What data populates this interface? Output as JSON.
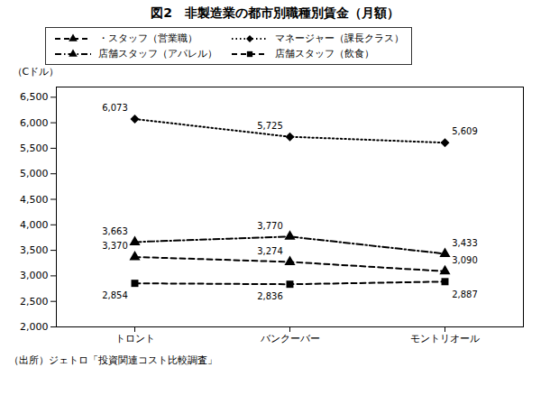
{
  "chart_data": {
    "type": "line",
    "title": "図2　非製造業の都市別職種別賃金（月額）",
    "ylabel": "（Cドル）",
    "source": "（出所）ジェトロ「投資関連コスト比較調査」",
    "categories": [
      "トロント",
      "バンクーバー",
      "モントリオール"
    ],
    "series": [
      {
        "name": "・スタッフ（営業職）",
        "color": "#000000",
        "marker": "triangle",
        "line_style": "dashed",
        "values": [
          3370,
          3274,
          3090
        ],
        "value_labels": [
          "3,370",
          "3,274",
          "3,090"
        ]
      },
      {
        "name": "マネージャー（課長クラス）",
        "color": "#000000",
        "marker": "diamond",
        "line_style": "dotted",
        "values": [
          6073,
          5725,
          5609
        ],
        "value_labels": [
          "6,073",
          "5,725",
          "5,609"
        ]
      },
      {
        "name": "店舗スタッフ（アパレル）",
        "color": "#000000",
        "marker": "triangle",
        "line_style": "dashdot",
        "values": [
          3663,
          3770,
          3433
        ],
        "value_labels": [
          "3,663",
          "3,770",
          "3,433"
        ]
      },
      {
        "name": "店舗スタッフ（飲食）",
        "color": "#000000",
        "marker": "square",
        "line_style": "dashed",
        "values": [
          2854,
          2836,
          2887
        ],
        "value_labels": [
          "2,854",
          "2,836",
          "2,887"
        ]
      }
    ],
    "ylim": [
      2000,
      6700
    ],
    "yticks": [
      {
        "value": 2000,
        "label": "2,000"
      },
      {
        "value": 2500,
        "label": "2,500"
      },
      {
        "value": 3000,
        "label": "3,000"
      },
      {
        "value": 3500,
        "label": "3,500"
      },
      {
        "value": 4000,
        "label": "4,000"
      },
      {
        "value": 4500,
        "label": "4,500"
      },
      {
        "value": 5000,
        "label": "5,000"
      },
      {
        "value": 5500,
        "label": "5,500"
      },
      {
        "value": 6000,
        "label": "6,000"
      },
      {
        "value": 6500,
        "label": "6,500"
      }
    ],
    "data_labels": true,
    "legend": "upper left",
    "grid": false
  }
}
